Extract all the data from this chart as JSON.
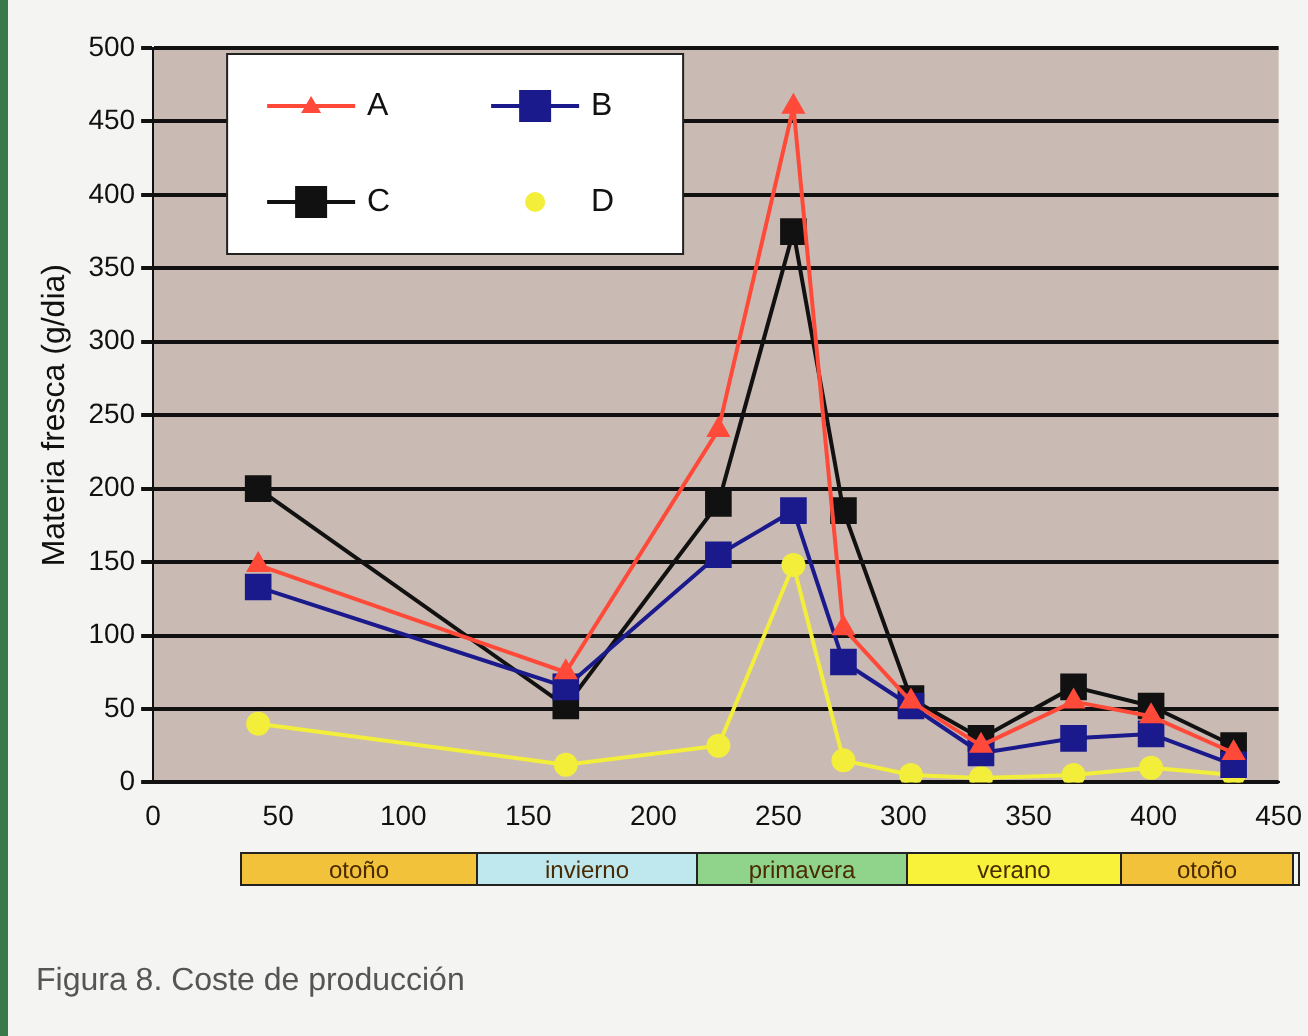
{
  "chart_data": {
    "type": "line",
    "title": "Figura 8. Coste de producción",
    "ylabel": "Materia fresca (g/dia)",
    "x": [
      42,
      165,
      226,
      256,
      276,
      303,
      331,
      368,
      399,
      432
    ],
    "series": [
      {
        "name": "A",
        "color": "#ff4a3a",
        "marker": "triangle",
        "values": [
          148,
          75,
          240,
          460,
          105,
          55,
          25,
          55,
          45,
          20
        ]
      },
      {
        "name": "B",
        "color": "#1a1a8c",
        "marker": "square",
        "values": [
          133,
          65,
          155,
          185,
          82,
          52,
          20,
          30,
          33,
          12
        ]
      },
      {
        "name": "C",
        "color": "#111111",
        "marker": "square",
        "values": [
          200,
          52,
          190,
          375,
          185,
          57,
          30,
          65,
          52,
          25
        ]
      },
      {
        "name": "D",
        "color": "#f2ee3a",
        "marker": "circle",
        "values": [
          40,
          12,
          25,
          148,
          15,
          5,
          3,
          5,
          10,
          5
        ]
      }
    ],
    "xlim": [
      0,
      450
    ],
    "xticks": [
      0,
      50,
      100,
      150,
      200,
      250,
      300,
      350,
      400,
      450
    ],
    "ylim": [
      0,
      500
    ],
    "yticks": [
      0,
      50,
      100,
      150,
      200,
      250,
      300,
      350,
      400,
      450,
      500
    ],
    "grid": "y",
    "legend": "top left",
    "annotations": [
      "otoño",
      "invierno",
      "primavera",
      "verano",
      "otoño"
    ]
  }
}
